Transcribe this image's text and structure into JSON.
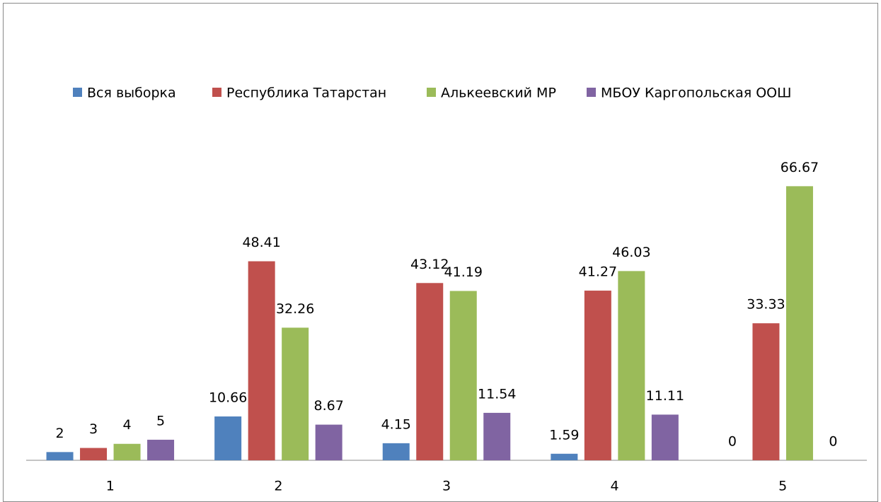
{
  "chart_data": {
    "type": "bar",
    "categories": [
      "1",
      "2",
      "3",
      "4",
      "5"
    ],
    "series": [
      {
        "name": "Вся выборка",
        "color": "#4f81bd",
        "values": [
          2,
          10.66,
          4.15,
          1.59,
          0
        ]
      },
      {
        "name": "Республика Татарстан",
        "color": "#c0504d",
        "values": [
          3,
          48.41,
          43.12,
          41.27,
          33.33
        ]
      },
      {
        "name": "Алькеевский МР",
        "color": "#9bbb59",
        "values": [
          4,
          32.26,
          41.19,
          46.03,
          66.67
        ]
      },
      {
        "name": "МБОУ Каргопольская ООШ",
        "color": "#8064a2",
        "values": [
          5,
          8.67,
          11.54,
          11.11,
          0
        ]
      }
    ],
    "ylim": [
      0,
      70
    ],
    "legend": "top"
  }
}
